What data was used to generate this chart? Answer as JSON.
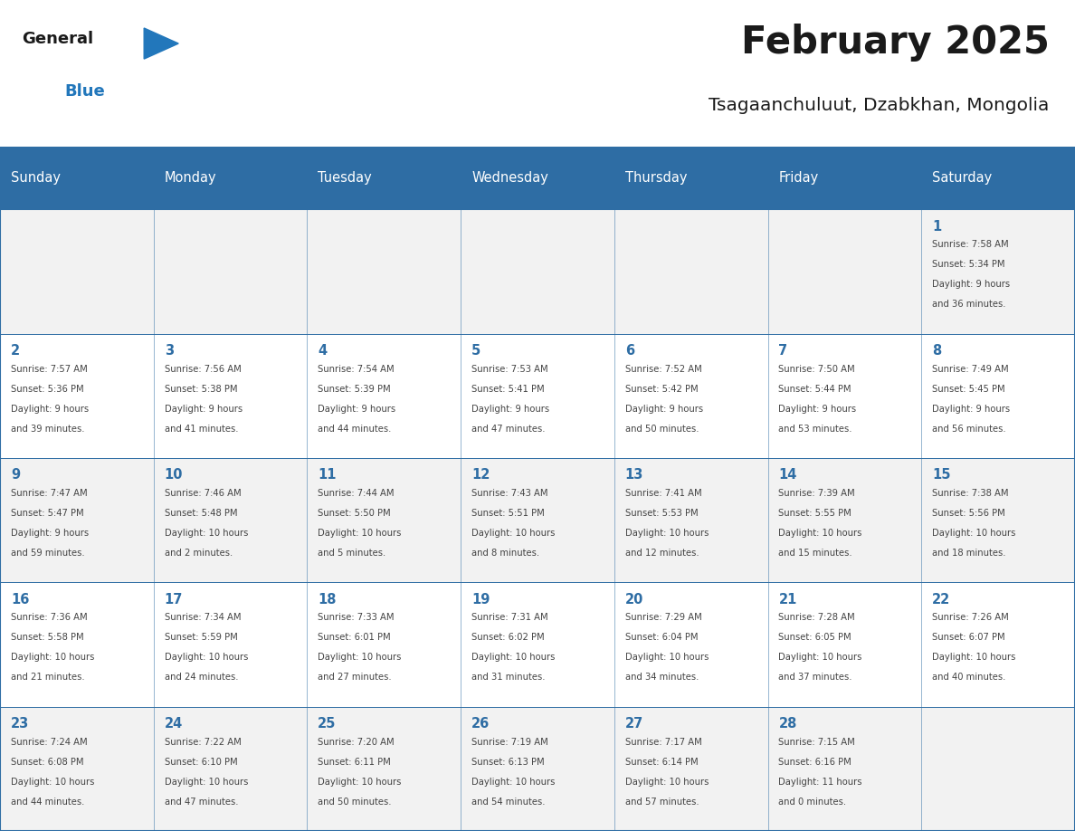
{
  "title": "February 2025",
  "subtitle": "Tsagaanchuluut, Dzabkhan, Mongolia",
  "header_bg": "#2E6DA4",
  "header_text_color": "#FFFFFF",
  "cell_bg": "#F2F2F2",
  "day_number_color": "#2E6DA4",
  "text_color": "#444444",
  "border_color": "#2E6DA4",
  "days_of_week": [
    "Sunday",
    "Monday",
    "Tuesday",
    "Wednesday",
    "Thursday",
    "Friday",
    "Saturday"
  ],
  "weeks": [
    [
      {
        "day": "",
        "info": ""
      },
      {
        "day": "",
        "info": ""
      },
      {
        "day": "",
        "info": ""
      },
      {
        "day": "",
        "info": ""
      },
      {
        "day": "",
        "info": ""
      },
      {
        "day": "",
        "info": ""
      },
      {
        "day": "1",
        "info": "Sunrise: 7:58 AM\nSunset: 5:34 PM\nDaylight: 9 hours\nand 36 minutes."
      }
    ],
    [
      {
        "day": "2",
        "info": "Sunrise: 7:57 AM\nSunset: 5:36 PM\nDaylight: 9 hours\nand 39 minutes."
      },
      {
        "day": "3",
        "info": "Sunrise: 7:56 AM\nSunset: 5:38 PM\nDaylight: 9 hours\nand 41 minutes."
      },
      {
        "day": "4",
        "info": "Sunrise: 7:54 AM\nSunset: 5:39 PM\nDaylight: 9 hours\nand 44 minutes."
      },
      {
        "day": "5",
        "info": "Sunrise: 7:53 AM\nSunset: 5:41 PM\nDaylight: 9 hours\nand 47 minutes."
      },
      {
        "day": "6",
        "info": "Sunrise: 7:52 AM\nSunset: 5:42 PM\nDaylight: 9 hours\nand 50 minutes."
      },
      {
        "day": "7",
        "info": "Sunrise: 7:50 AM\nSunset: 5:44 PM\nDaylight: 9 hours\nand 53 minutes."
      },
      {
        "day": "8",
        "info": "Sunrise: 7:49 AM\nSunset: 5:45 PM\nDaylight: 9 hours\nand 56 minutes."
      }
    ],
    [
      {
        "day": "9",
        "info": "Sunrise: 7:47 AM\nSunset: 5:47 PM\nDaylight: 9 hours\nand 59 minutes."
      },
      {
        "day": "10",
        "info": "Sunrise: 7:46 AM\nSunset: 5:48 PM\nDaylight: 10 hours\nand 2 minutes."
      },
      {
        "day": "11",
        "info": "Sunrise: 7:44 AM\nSunset: 5:50 PM\nDaylight: 10 hours\nand 5 minutes."
      },
      {
        "day": "12",
        "info": "Sunrise: 7:43 AM\nSunset: 5:51 PM\nDaylight: 10 hours\nand 8 minutes."
      },
      {
        "day": "13",
        "info": "Sunrise: 7:41 AM\nSunset: 5:53 PM\nDaylight: 10 hours\nand 12 minutes."
      },
      {
        "day": "14",
        "info": "Sunrise: 7:39 AM\nSunset: 5:55 PM\nDaylight: 10 hours\nand 15 minutes."
      },
      {
        "day": "15",
        "info": "Sunrise: 7:38 AM\nSunset: 5:56 PM\nDaylight: 10 hours\nand 18 minutes."
      }
    ],
    [
      {
        "day": "16",
        "info": "Sunrise: 7:36 AM\nSunset: 5:58 PM\nDaylight: 10 hours\nand 21 minutes."
      },
      {
        "day": "17",
        "info": "Sunrise: 7:34 AM\nSunset: 5:59 PM\nDaylight: 10 hours\nand 24 minutes."
      },
      {
        "day": "18",
        "info": "Sunrise: 7:33 AM\nSunset: 6:01 PM\nDaylight: 10 hours\nand 27 minutes."
      },
      {
        "day": "19",
        "info": "Sunrise: 7:31 AM\nSunset: 6:02 PM\nDaylight: 10 hours\nand 31 minutes."
      },
      {
        "day": "20",
        "info": "Sunrise: 7:29 AM\nSunset: 6:04 PM\nDaylight: 10 hours\nand 34 minutes."
      },
      {
        "day": "21",
        "info": "Sunrise: 7:28 AM\nSunset: 6:05 PM\nDaylight: 10 hours\nand 37 minutes."
      },
      {
        "day": "22",
        "info": "Sunrise: 7:26 AM\nSunset: 6:07 PM\nDaylight: 10 hours\nand 40 minutes."
      }
    ],
    [
      {
        "day": "23",
        "info": "Sunrise: 7:24 AM\nSunset: 6:08 PM\nDaylight: 10 hours\nand 44 minutes."
      },
      {
        "day": "24",
        "info": "Sunrise: 7:22 AM\nSunset: 6:10 PM\nDaylight: 10 hours\nand 47 minutes."
      },
      {
        "day": "25",
        "info": "Sunrise: 7:20 AM\nSunset: 6:11 PM\nDaylight: 10 hours\nand 50 minutes."
      },
      {
        "day": "26",
        "info": "Sunrise: 7:19 AM\nSunset: 6:13 PM\nDaylight: 10 hours\nand 54 minutes."
      },
      {
        "day": "27",
        "info": "Sunrise: 7:17 AM\nSunset: 6:14 PM\nDaylight: 10 hours\nand 57 minutes."
      },
      {
        "day": "28",
        "info": "Sunrise: 7:15 AM\nSunset: 6:16 PM\nDaylight: 11 hours\nand 0 minutes."
      },
      {
        "day": "",
        "info": ""
      }
    ]
  ],
  "logo_color_general": "#1a1a1a",
  "logo_color_blue": "#2277BB",
  "logo_triangle_color": "#2277BB"
}
